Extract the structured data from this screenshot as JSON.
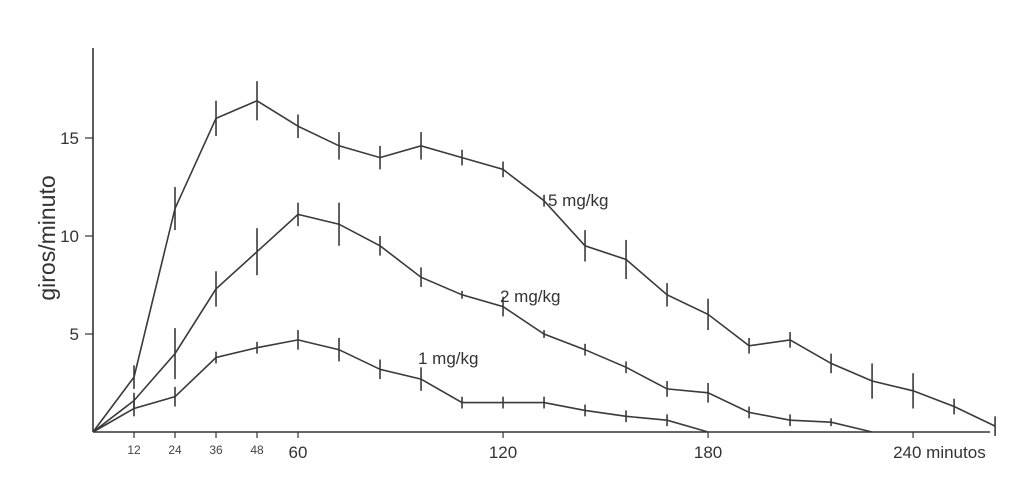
{
  "chart_data": {
    "type": "line",
    "xlabel": "minutos",
    "ylabel": "giros/minuto",
    "xlim": [
      0,
      250
    ],
    "ylim": [
      0,
      17.5
    ],
    "grid": false,
    "legend": "inline labels next to lines",
    "line_color": "#3a3a3a",
    "yticks": [
      "5",
      "10",
      "15"
    ],
    "xticks_small": [
      "12",
      "24",
      "36",
      "48"
    ],
    "xticks_large": [
      "60",
      "120",
      "180",
      "240 minutos"
    ],
    "series": [
      {
        "name": "5 mg/kg",
        "x": [
          0,
          12,
          24,
          36,
          48,
          60,
          72,
          84,
          96,
          108,
          120,
          132,
          144,
          156,
          168,
          180,
          192,
          204,
          216,
          228,
          240,
          252,
          264
        ],
        "y": [
          0,
          2.8,
          11.4,
          16.0,
          16.9,
          15.6,
          14.6,
          14.0,
          14.6,
          14.0,
          13.4,
          11.8,
          9.5,
          8.8,
          7.0,
          6.0,
          4.4,
          4.7,
          3.5,
          2.6,
          2.1,
          1.3,
          0.3
        ],
        "err": [
          0,
          0.6,
          1.1,
          0.9,
          1.0,
          0.6,
          0.7,
          0.6,
          0.7,
          0.4,
          0.4,
          0.3,
          0.8,
          1.0,
          0.6,
          0.8,
          0.4,
          0.4,
          0.5,
          0.9,
          0.9,
          0.4,
          0.5
        ]
      },
      {
        "name": "2 mg/kg",
        "x": [
          0,
          12,
          24,
          36,
          48,
          60,
          72,
          84,
          96,
          108,
          120,
          132,
          144,
          156,
          168,
          180,
          192,
          204,
          216,
          228
        ],
        "y": [
          0,
          1.6,
          4.0,
          7.3,
          9.2,
          11.1,
          10.6,
          9.5,
          7.9,
          7.0,
          6.4,
          5.0,
          4.2,
          3.3,
          2.2,
          2.0,
          1.0,
          0.6,
          0.5,
          0.0
        ],
        "err": [
          0,
          0.4,
          1.3,
          0.9,
          1.2,
          0.6,
          1.1,
          0.5,
          0.5,
          0.2,
          0.5,
          0.2,
          0.3,
          0.3,
          0.4,
          0.5,
          0.3,
          0.3,
          0.2,
          0
        ]
      },
      {
        "name": "1 mg/kg",
        "x": [
          0,
          12,
          24,
          36,
          48,
          60,
          72,
          84,
          96,
          108,
          120,
          132,
          144,
          156,
          168,
          180
        ],
        "y": [
          0,
          1.2,
          1.8,
          3.8,
          4.3,
          4.7,
          4.2,
          3.2,
          2.7,
          1.5,
          1.5,
          1.5,
          1.1,
          0.8,
          0.6,
          0.0
        ],
        "err": [
          0,
          0.4,
          0.5,
          0.3,
          0.3,
          0.5,
          0.6,
          0.5,
          0.6,
          0.3,
          0.3,
          0.3,
          0.3,
          0.3,
          0.3,
          0
        ]
      }
    ]
  }
}
